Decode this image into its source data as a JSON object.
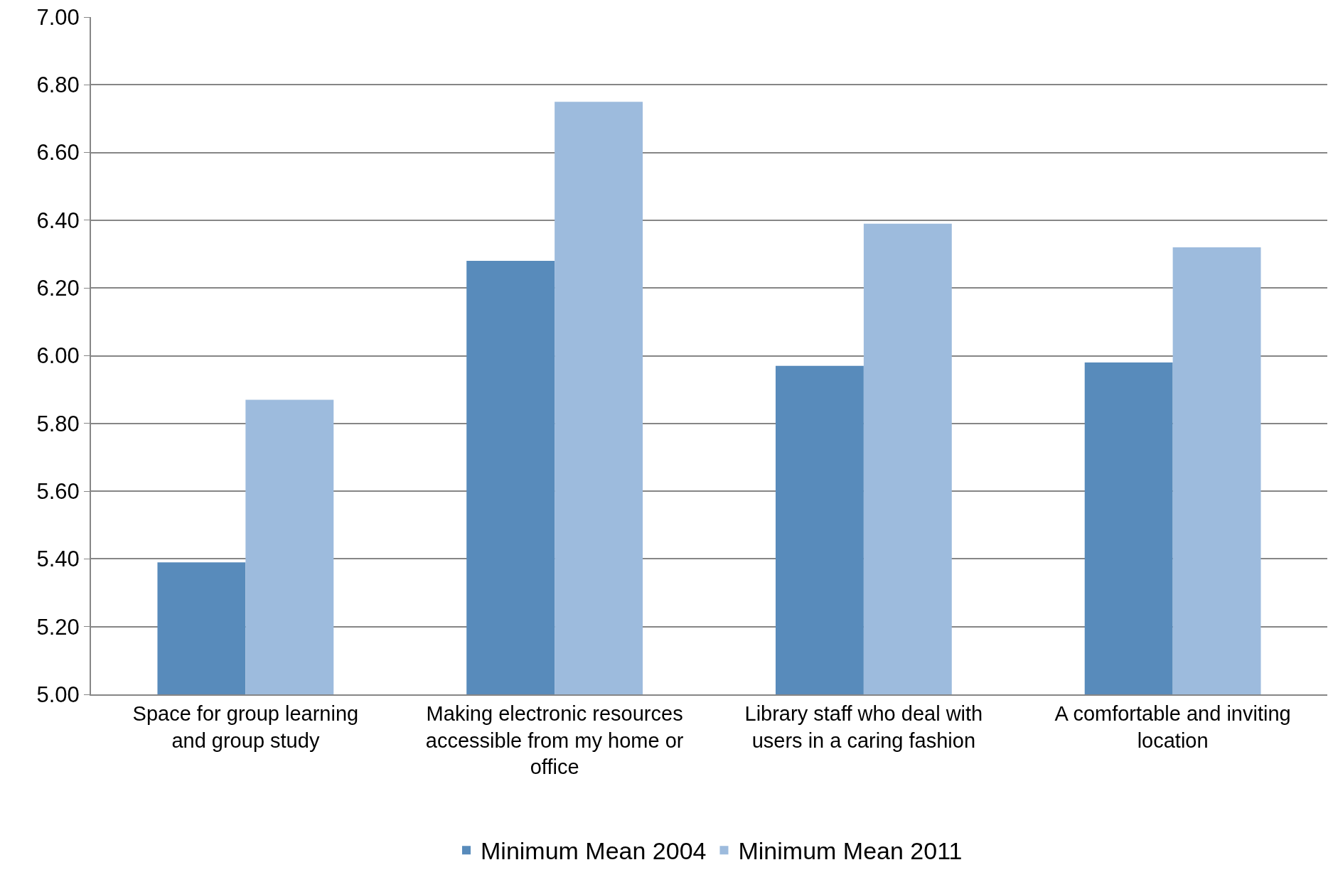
{
  "chart_data": {
    "type": "bar",
    "categories": [
      "Space for group learning and group study",
      "Making electronic resources accessible from my home or office",
      "Library staff who deal with users in a caring fashion",
      "A comfortable and inviting location"
    ],
    "series": [
      {
        "name": "Minimum Mean 2004",
        "color": "#588bbb",
        "values": [
          5.39,
          6.28,
          5.97,
          5.98
        ]
      },
      {
        "name": "Minimum Mean 2011",
        "color": "#9dbbdd",
        "values": [
          5.87,
          6.75,
          6.39,
          6.32
        ]
      }
    ],
    "ylim": [
      5,
      7
    ],
    "yticks": [
      {
        "value": 5,
        "label": "5.00"
      },
      {
        "value": 5.2,
        "label": "5.20"
      },
      {
        "value": 5.4,
        "label": "5.40"
      },
      {
        "value": 5.6,
        "label": "5.60"
      },
      {
        "value": 5.8,
        "label": "5.80"
      },
      {
        "value": 6,
        "label": "6.00"
      },
      {
        "value": 6.2,
        "label": "6.20"
      },
      {
        "value": 6.4,
        "label": "6.40"
      },
      {
        "value": 6.6,
        "label": "6.60"
      },
      {
        "value": 6.8,
        "label": "6.80"
      },
      {
        "value": 7,
        "label": "7.00"
      }
    ],
    "grid": "y",
    "legend": "bottom"
  }
}
